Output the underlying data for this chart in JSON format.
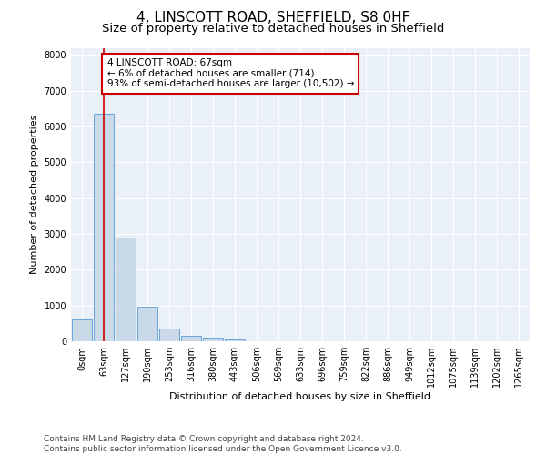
{
  "title_line1": "4, LINSCOTT ROAD, SHEFFIELD, S8 0HF",
  "title_line2": "Size of property relative to detached houses in Sheffield",
  "xlabel": "Distribution of detached houses by size in Sheffield",
  "ylabel": "Number of detached properties",
  "bar_labels": [
    "0sqm",
    "63sqm",
    "127sqm",
    "190sqm",
    "253sqm",
    "316sqm",
    "380sqm",
    "443sqm",
    "506sqm",
    "569sqm",
    "633sqm",
    "696sqm",
    "759sqm",
    "822sqm",
    "886sqm",
    "949sqm",
    "1012sqm",
    "1075sqm",
    "1139sqm",
    "1202sqm",
    "1265sqm"
  ],
  "bar_heights": [
    600,
    6350,
    2900,
    970,
    360,
    160,
    90,
    60,
    0,
    0,
    0,
    0,
    0,
    0,
    0,
    0,
    0,
    0,
    0,
    0,
    0
  ],
  "bar_color": "#c9d9e8",
  "bar_edge_color": "#5b9bd5",
  "property_line_x": 1,
  "annotation_text": "4 LINSCOTT ROAD: 67sqm\n← 6% of detached houses are smaller (714)\n93% of semi-detached houses are larger (10,502) →",
  "annotation_box_color": "#ffffff",
  "annotation_border_color": "#cc0000",
  "vline_color": "#cc0000",
  "ylim": [
    0,
    8200
  ],
  "yticks": [
    0,
    1000,
    2000,
    3000,
    4000,
    5000,
    6000,
    7000,
    8000
  ],
  "plot_background": "#eaf0f8",
  "footer_text": "Contains HM Land Registry data © Crown copyright and database right 2024.\nContains public sector information licensed under the Open Government Licence v3.0.",
  "title_fontsize": 11,
  "subtitle_fontsize": 9.5,
  "axis_label_fontsize": 8,
  "tick_fontsize": 7,
  "annotation_fontsize": 7.5,
  "footer_fontsize": 6.5
}
